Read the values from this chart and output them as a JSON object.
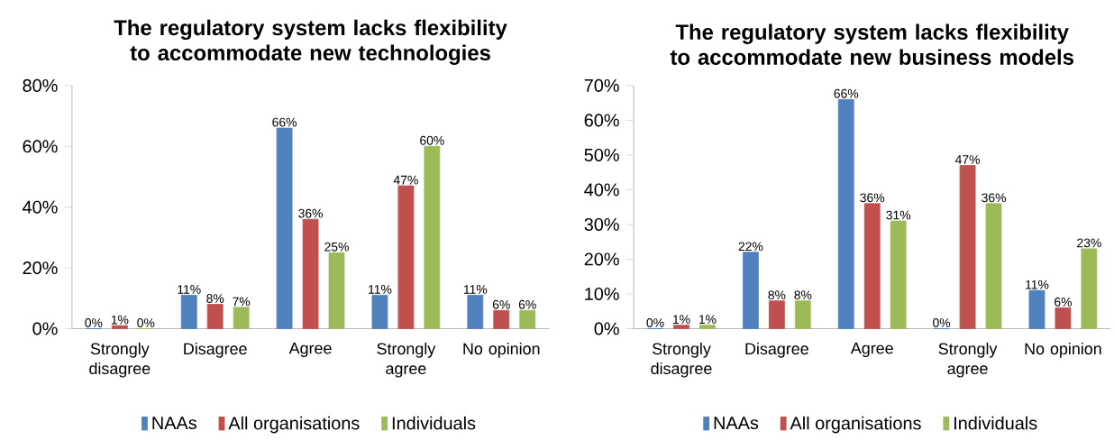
{
  "chart_data": [
    {
      "type": "bar",
      "title": "The regulatory system lacks flexibility to accommodate new technologies",
      "categories": [
        "Strongly disagree",
        "Disagree",
        "Agree",
        "Strongly agree",
        "No opinion"
      ],
      "ylim": [
        0,
        80
      ],
      "yticks": [
        {
          "value": 0,
          "label": "0%"
        },
        {
          "value": 20,
          "label": "20%"
        },
        {
          "value": 40,
          "label": "40%"
        },
        {
          "value": 60,
          "label": "60%"
        },
        {
          "value": 80,
          "label": "80%"
        }
      ],
      "legend": "bottom",
      "series": [
        {
          "name": "NAAs",
          "color": "#4f81bd",
          "values": [
            0,
            11,
            66,
            11,
            11
          ],
          "value_labels": [
            "0%",
            "11%",
            "66%",
            "11%",
            "11%"
          ]
        },
        {
          "name": "All organisations",
          "color": "#c0504d",
          "values": [
            1,
            8,
            36,
            47,
            6
          ],
          "value_labels": [
            "1%",
            "8%",
            "36%",
            "47%",
            "6%"
          ]
        },
        {
          "name": "Individuals",
          "color": "#9bbb59",
          "values": [
            0,
            7,
            25,
            60,
            6
          ],
          "value_labels": [
            "0%",
            "7%",
            "25%",
            "60%",
            "6%"
          ]
        }
      ]
    },
    {
      "type": "bar",
      "title": "The regulatory system lacks flexibility to accommodate new business models",
      "categories": [
        "Strongly disagree",
        "Disagree",
        "Agree",
        "Strongly agree",
        "No opinion"
      ],
      "ylim": [
        0,
        70
      ],
      "yticks": [
        {
          "value": 0,
          "label": "0%"
        },
        {
          "value": 10,
          "label": "10%"
        },
        {
          "value": 20,
          "label": "20%"
        },
        {
          "value": 30,
          "label": "30%"
        },
        {
          "value": 40,
          "label": "40%"
        },
        {
          "value": 50,
          "label": "50%"
        },
        {
          "value": 60,
          "label": "60%"
        },
        {
          "value": 70,
          "label": "70%"
        }
      ],
      "legend": "bottom",
      "series": [
        {
          "name": "NAAs",
          "color": "#4f81bd",
          "values": [
            0,
            22,
            66,
            0,
            11
          ],
          "value_labels": [
            "0%",
            "22%",
            "66%",
            "0%",
            "11%"
          ]
        },
        {
          "name": "All organisations",
          "color": "#c0504d",
          "values": [
            1,
            8,
            36,
            47,
            6
          ],
          "value_labels": [
            "1%",
            "8%",
            "36%",
            "47%",
            "6%"
          ]
        },
        {
          "name": "Individuals",
          "color": "#9bbb59",
          "values": [
            1,
            8,
            31,
            36,
            23
          ],
          "value_labels": [
            "1%",
            "8%",
            "31%",
            "36%",
            "23%"
          ]
        }
      ]
    }
  ]
}
